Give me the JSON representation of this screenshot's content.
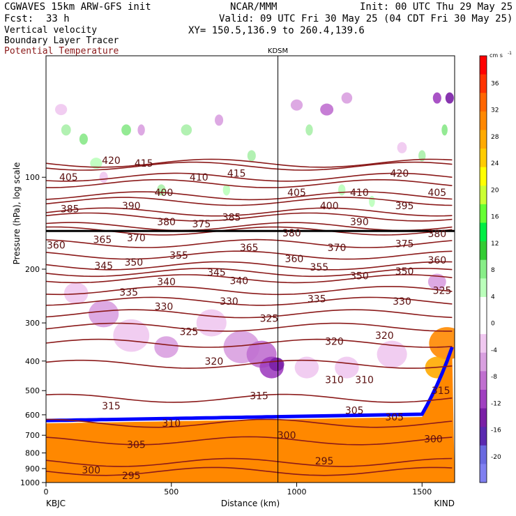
{
  "header": {
    "model": "CGWAVES 15km ARW-GFS init",
    "org": "NCAR/MMM",
    "init": "Init: 00 UTC Thu 29 May 25",
    "fcst_label": "Fcst:",
    "fcst_value": "33 h",
    "valid": "Valid: 09 UTC Fri 30 May 25 (04 CDT Fri 30 May 25)",
    "xy": "XY= 150.5,136.9 to 260.4,139.6",
    "fields": [
      "Vertical velocity",
      "Boundary Layer Tracer",
      "Potential Temperature"
    ],
    "field_colors": [
      "#000000",
      "#000000",
      "#8b1a1a"
    ]
  },
  "chart_data": {
    "type": "heatmap",
    "title": "",
    "xlabel": "Distance (km)",
    "ylabel": "Pressure (hPa), log scale",
    "x_ticks": [
      0,
      500,
      1000,
      1500
    ],
    "y_ticks": [
      100,
      200,
      300,
      400,
      500,
      600,
      700,
      800,
      900,
      1000
    ],
    "xlim": [
      0,
      1630
    ],
    "ylim": [
      1000,
      40
    ],
    "y_scale": "log",
    "endpoints": {
      "left": "KBJC",
      "right": "KIND"
    },
    "marker": {
      "label": "KDSM",
      "x": 925
    },
    "colorbar": {
      "unit": "cm s",
      "unit_exp": "-1",
      "ticks": [
        36,
        32,
        28,
        24,
        20,
        16,
        12,
        8,
        4,
        0,
        -4,
        -8,
        -12,
        -16,
        -20
      ],
      "colors": [
        "#ff0000",
        "#ff3300",
        "#ff6600",
        "#ff8800",
        "#ffaa00",
        "#ffcc00",
        "#ffff00",
        "#ccff33",
        "#66ff33",
        "#00ee44",
        "#33cc33",
        "#88ee88",
        "#bbffbb",
        "#ffffff",
        "#ffffff",
        "#f0c8f0",
        "#d9a0e0",
        "#c070d0",
        "#a040c0",
        "#7a1fa6",
        "#5a2ab0",
        "#6a6ae0",
        "#8080f0"
      ]
    },
    "theta_contours": [
      {
        "value": 420,
        "p": 90
      },
      {
        "value": 415,
        "p": 92
      },
      {
        "value": 410,
        "p": 100
      },
      {
        "value": 405,
        "p": 105
      },
      {
        "value": 400,
        "p": 115
      },
      {
        "value": 395,
        "p": 120
      },
      {
        "value": 390,
        "p": 130
      },
      {
        "value": 385,
        "p": 135
      },
      {
        "value": 380,
        "p": 145
      },
      {
        "value": 375,
        "p": 150
      },
      {
        "value": 370,
        "p": 165
      },
      {
        "value": 365,
        "p": 180
      },
      {
        "value": 360,
        "p": 195
      },
      {
        "value": 355,
        "p": 205
      },
      {
        "value": 350,
        "p": 215
      },
      {
        "value": 345,
        "p": 235
      },
      {
        "value": 340,
        "p": 255
      },
      {
        "value": 335,
        "p": 280
      },
      {
        "value": 330,
        "p": 310
      },
      {
        "value": 325,
        "p": 350
      },
      {
        "value": 320,
        "p": 410
      },
      {
        "value": 315,
        "p": 530
      },
      {
        "value": 310,
        "p": 640
      },
      {
        "value": 305,
        "p": 730
      },
      {
        "value": 300,
        "p": 860
      },
      {
        "value": 295,
        "p": 920
      }
    ],
    "theta_labels": [
      {
        "text": "420",
        "x": 260,
        "p": 88
      },
      {
        "text": "415",
        "x": 390,
        "p": 90
      },
      {
        "text": "405",
        "x": 90,
        "p": 100
      },
      {
        "text": "410",
        "x": 610,
        "p": 100
      },
      {
        "text": "415",
        "x": 760,
        "p": 97
      },
      {
        "text": "420",
        "x": 1410,
        "p": 97
      },
      {
        "text": "400",
        "x": 470,
        "p": 112
      },
      {
        "text": "405",
        "x": 1000,
        "p": 112
      },
      {
        "text": "410",
        "x": 1250,
        "p": 112
      },
      {
        "text": "405",
        "x": 1560,
        "p": 112
      },
      {
        "text": "385",
        "x": 95,
        "p": 127
      },
      {
        "text": "390",
        "x": 340,
        "p": 124
      },
      {
        "text": "400",
        "x": 1130,
        "p": 124
      },
      {
        "text": "395",
        "x": 1430,
        "p": 124
      },
      {
        "text": "380",
        "x": 480,
        "p": 140
      },
      {
        "text": "375",
        "x": 620,
        "p": 142
      },
      {
        "text": "385",
        "x": 740,
        "p": 135
      },
      {
        "text": "390",
        "x": 1250,
        "p": 140
      },
      {
        "text": "380",
        "x": 980,
        "p": 152
      },
      {
        "text": "380",
        "x": 1560,
        "p": 153
      },
      {
        "text": "365",
        "x": 225,
        "p": 160
      },
      {
        "text": "370",
        "x": 360,
        "p": 158
      },
      {
        "text": "375",
        "x": 1430,
        "p": 165
      },
      {
        "text": "360",
        "x": 40,
        "p": 167
      },
      {
        "text": "370",
        "x": 1160,
        "p": 170
      },
      {
        "text": "365",
        "x": 810,
        "p": 170
      },
      {
        "text": "355",
        "x": 530,
        "p": 180
      },
      {
        "text": "360",
        "x": 990,
        "p": 185
      },
      {
        "text": "360",
        "x": 1560,
        "p": 187
      },
      {
        "text": "345",
        "x": 230,
        "p": 195
      },
      {
        "text": "350",
        "x": 350,
        "p": 190
      },
      {
        "text": "345",
        "x": 680,
        "p": 205
      },
      {
        "text": "355",
        "x": 1090,
        "p": 197
      },
      {
        "text": "350",
        "x": 1250,
        "p": 210
      },
      {
        "text": "350",
        "x": 1430,
        "p": 203
      },
      {
        "text": "340",
        "x": 480,
        "p": 220
      },
      {
        "text": "340",
        "x": 770,
        "p": 218
      },
      {
        "text": "335",
        "x": 330,
        "p": 238
      },
      {
        "text": "335",
        "x": 1080,
        "p": 250
      },
      {
        "text": "330",
        "x": 1420,
        "p": 255
      },
      {
        "text": "325",
        "x": 1580,
        "p": 235
      },
      {
        "text": "330",
        "x": 470,
        "p": 265
      },
      {
        "text": "330",
        "x": 730,
        "p": 255
      },
      {
        "text": "325",
        "x": 570,
        "p": 320
      },
      {
        "text": "325",
        "x": 890,
        "p": 290
      },
      {
        "text": "320",
        "x": 1150,
        "p": 345
      },
      {
        "text": "320",
        "x": 1350,
        "p": 330
      },
      {
        "text": "320",
        "x": 670,
        "p": 400
      },
      {
        "text": "310",
        "x": 1150,
        "p": 460
      },
      {
        "text": "310",
        "x": 1270,
        "p": 460
      },
      {
        "text": "315",
        "x": 850,
        "p": 520
      },
      {
        "text": "315",
        "x": 260,
        "p": 560
      },
      {
        "text": "315",
        "x": 1575,
        "p": 500
      },
      {
        "text": "305",
        "x": 1230,
        "p": 580
      },
      {
        "text": "305",
        "x": 1390,
        "p": 610
      },
      {
        "text": "310",
        "x": 500,
        "p": 640
      },
      {
        "text": "300",
        "x": 960,
        "p": 700
      },
      {
        "text": "300",
        "x": 1545,
        "p": 720
      },
      {
        "text": "305",
        "x": 360,
        "p": 750
      },
      {
        "text": "295",
        "x": 1110,
        "p": 850
      },
      {
        "text": "300",
        "x": 180,
        "p": 910
      },
      {
        "text": "295",
        "x": 340,
        "p": 950
      }
    ]
  }
}
